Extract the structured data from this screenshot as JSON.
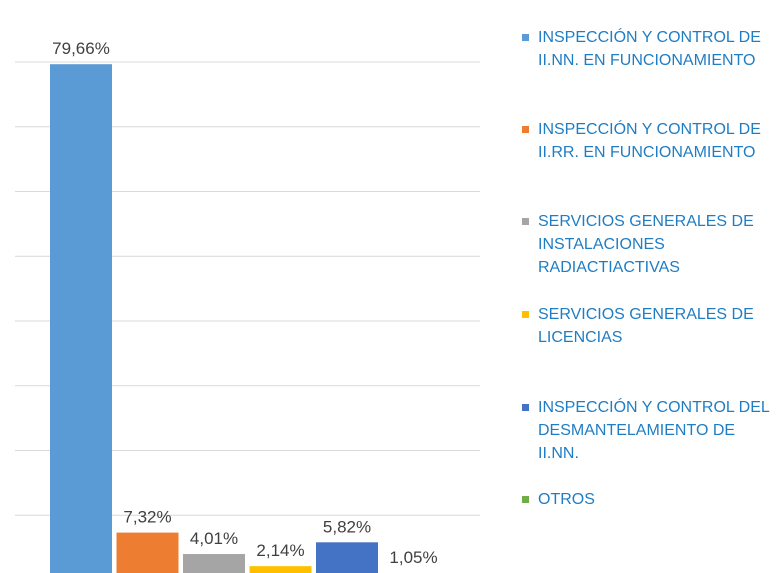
{
  "chart_data": {
    "type": "bar",
    "categories": [
      null
    ],
    "series": [
      {
        "name": "INSPECCIÓN Y CONTROL DE II.NN. EN FUNCIONAMIENTO",
        "color": "#5b9bd5",
        "values": [
          79.66
        ],
        "value_labels": [
          "79,66%"
        ]
      },
      {
        "name": "INSPECCIÓN Y CONTROL DE II.RR. EN FUNCIONAMIENTO",
        "color": "#ed7d31",
        "values": [
          7.32
        ],
        "value_labels": [
          "7,32%"
        ]
      },
      {
        "name": "SERVICIOS GENERALES DE INSTALACIONES RADIACTIACTIVAS",
        "color": "#a5a5a5",
        "values": [
          4.01
        ],
        "value_labels": [
          "4,01%"
        ]
      },
      {
        "name": "SERVICIOS GENERALES DE LICENCIAS",
        "color": "#ffc000",
        "values": [
          2.14
        ],
        "value_labels": [
          "2,14%"
        ]
      },
      {
        "name": "INSPECCIÓN Y CONTROL DEL DESMANTELAMIENTO DE II.NN.",
        "color": "#4472c4",
        "values": [
          5.82
        ],
        "value_labels": [
          "5,82%"
        ]
      },
      {
        "name": "OTROS",
        "color": "#70ad47",
        "values": [
          1.05
        ],
        "value_labels": [
          "1,05%"
        ]
      }
    ],
    "ylim": [
      0,
      80
    ],
    "yticks": [
      0,
      10,
      20,
      30,
      40,
      50,
      60,
      70,
      80
    ],
    "grid": true,
    "legend": "right"
  }
}
